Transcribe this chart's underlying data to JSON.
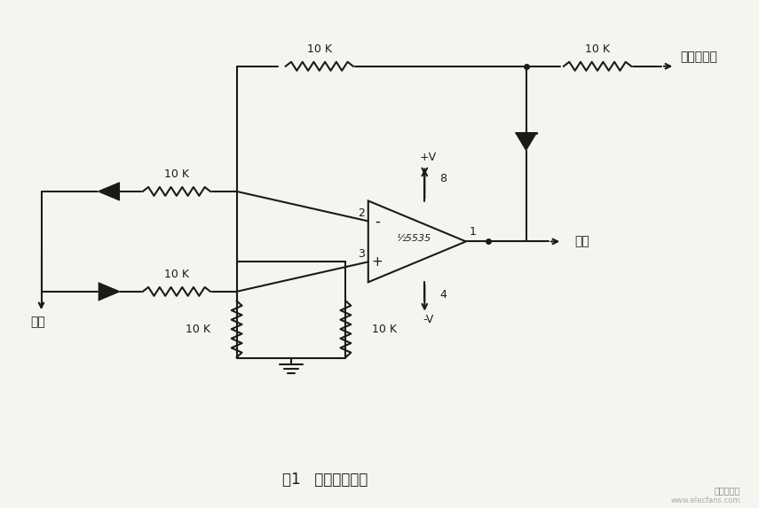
{
  "title": "图1   绝对值放大器",
  "background_color": "#f5f5f0",
  "line_color": "#1a1a1a",
  "text_color": "#1a1a1a",
  "font_size_label": 11,
  "font_size_title": 13,
  "labels": {
    "input": "输入",
    "output": "输出",
    "neg_voltage": "负极性电压",
    "plus_v": "+V",
    "minus_v": "-V",
    "r1": "10 K",
    "r2": "10 K",
    "r3": "10 K",
    "r4": "10 K",
    "r5": "10 K",
    "r6": "10 K",
    "opamp_label": "½5535",
    "pin2": "2",
    "pin3": "3",
    "pin1": "1",
    "pin8": "8",
    "pin4": "4"
  }
}
